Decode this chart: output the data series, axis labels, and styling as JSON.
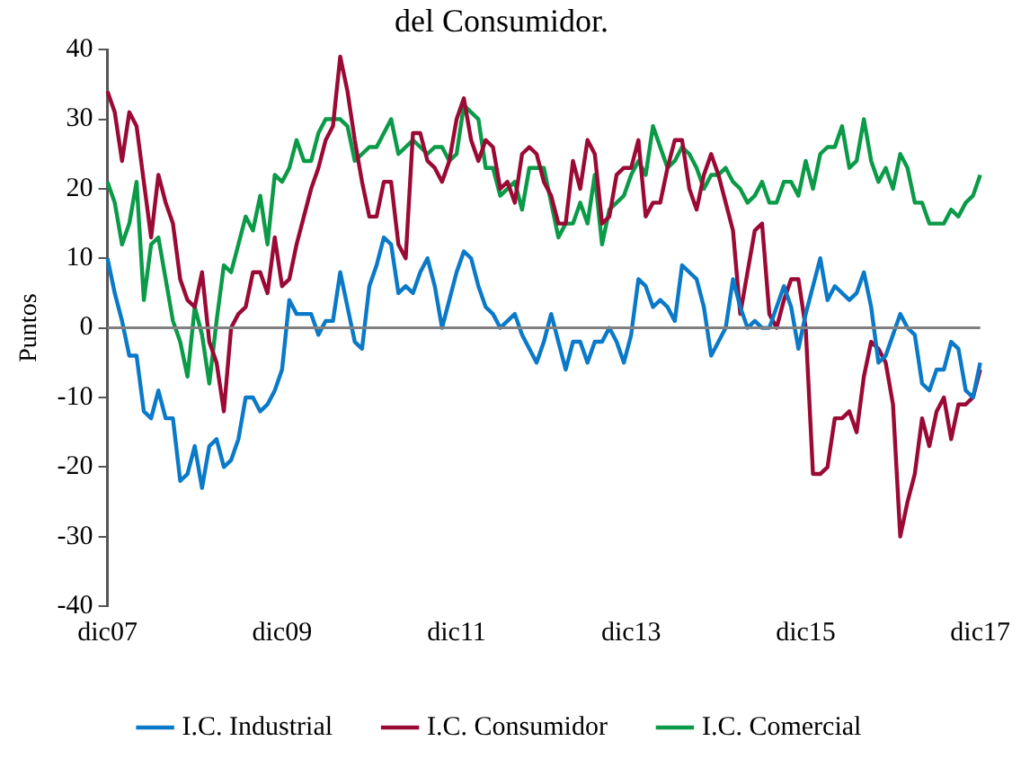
{
  "chart_data": {
    "type": "line",
    "title": "del Consumidor.",
    "ylabel": "Puntos",
    "categories": [
      "dic07",
      null,
      null,
      null,
      null,
      null,
      null,
      null,
      null,
      null,
      null,
      null,
      null,
      null,
      null,
      null,
      null,
      null,
      null,
      null,
      null,
      null,
      null,
      null,
      "dic09",
      null,
      null,
      null,
      null,
      null,
      null,
      null,
      null,
      null,
      null,
      null,
      null,
      null,
      null,
      null,
      null,
      null,
      null,
      null,
      null,
      null,
      null,
      null,
      "dic11",
      null,
      null,
      null,
      null,
      null,
      null,
      null,
      null,
      null,
      null,
      null,
      null,
      null,
      null,
      null,
      null,
      null,
      null,
      null,
      null,
      null,
      null,
      null,
      "dic13",
      null,
      null,
      null,
      null,
      null,
      null,
      null,
      null,
      null,
      null,
      null,
      null,
      null,
      null,
      null,
      null,
      null,
      null,
      null,
      null,
      null,
      null,
      null,
      "dic15",
      null,
      null,
      null,
      null,
      null,
      null,
      null,
      null,
      null,
      null,
      null,
      null,
      null,
      null,
      null,
      null,
      null,
      null,
      null,
      null,
      null,
      null,
      null,
      "dic17"
    ],
    "series": [
      {
        "name": "I.C. Industrial",
        "color": "#0a7ac8",
        "values": [
          10,
          5,
          1,
          -4,
          -4,
          -12,
          -13,
          -9,
          -13,
          -13,
          -22,
          -21,
          -17,
          -23,
          -17,
          -16,
          -20,
          -19,
          -16,
          -10,
          -10,
          -12,
          -11,
          -9,
          -6,
          4,
          2,
          2,
          2,
          -1,
          1,
          1,
          8,
          3,
          -2,
          -3,
          6,
          9,
          13,
          12,
          5,
          6,
          5,
          8,
          10,
          6,
          0,
          4,
          8,
          11,
          10,
          6,
          3,
          2,
          0,
          1,
          2,
          -1,
          -3,
          -5,
          -2,
          2,
          -2,
          -6,
          -2,
          -2,
          -5,
          -2,
          -2,
          0,
          -2,
          -5,
          -1,
          7,
          6,
          3,
          4,
          3,
          1,
          9,
          8,
          7,
          3,
          -4,
          -2,
          0,
          7,
          3,
          0,
          1,
          0,
          0,
          3,
          6,
          3,
          -3,
          2,
          6,
          10,
          4,
          6,
          5,
          4,
          5,
          8,
          3,
          -5,
          -4,
          -1,
          2,
          0,
          -1,
          -8,
          -9,
          -6,
          -6,
          -2,
          -3,
          -9,
          -10,
          -5
        ]
      },
      {
        "name": "I.C. Consumidor",
        "color": "#9b0a35",
        "values": [
          34,
          31,
          24,
          31,
          29,
          21,
          13,
          22,
          18,
          15,
          7,
          4,
          3,
          8,
          -2,
          -5,
          -12,
          0,
          2,
          3,
          8,
          8,
          5,
          13,
          6,
          7,
          12,
          16,
          20,
          23,
          27,
          29,
          39,
          34,
          27,
          21,
          16,
          16,
          21,
          21,
          12,
          10,
          28,
          28,
          24,
          23,
          21,
          24,
          30,
          33,
          27,
          24,
          27,
          26,
          20,
          21,
          18,
          25,
          26,
          25,
          21,
          19,
          15,
          15,
          24,
          20,
          27,
          25,
          15,
          16,
          22,
          23,
          23,
          27,
          16,
          18,
          18,
          23,
          27,
          27,
          20,
          17,
          22,
          25,
          22,
          18,
          14,
          2,
          8,
          14,
          15,
          2,
          0,
          4,
          7,
          7,
          0,
          -21,
          -21,
          -20,
          -13,
          -13,
          -12,
          -15,
          -7,
          -2,
          -3,
          -5,
          -11,
          -30,
          -25,
          -21,
          -13,
          -17,
          -12,
          -10,
          -16,
          -11,
          -11,
          -10,
          -6
        ]
      },
      {
        "name": "I.C. Comercial",
        "color": "#0a9a48",
        "values": [
          21,
          18,
          12,
          15,
          21,
          4,
          12,
          13,
          7,
          1,
          -2,
          -7,
          3,
          -1,
          -8,
          1,
          9,
          8,
          12,
          16,
          14,
          19,
          12,
          22,
          21,
          23,
          27,
          24,
          24,
          28,
          30,
          30,
          30,
          29,
          24,
          25,
          26,
          26,
          28,
          30,
          25,
          26,
          27,
          26,
          25,
          26,
          26,
          24,
          25,
          32,
          31,
          30,
          23,
          23,
          19,
          20,
          21,
          17,
          23,
          23,
          23,
          18,
          13,
          15,
          15,
          18,
          15,
          22,
          12,
          17,
          18,
          19,
          22,
          24,
          22,
          29,
          26,
          23,
          24,
          26,
          25,
          23,
          20,
          22,
          22,
          23,
          21,
          20,
          18,
          19,
          21,
          18,
          18,
          21,
          21,
          19,
          24,
          20,
          25,
          26,
          26,
          29,
          23,
          24,
          30,
          24,
          21,
          23,
          20,
          25,
          23,
          18,
          18,
          15,
          15,
          15,
          17,
          16,
          18,
          19,
          22
        ]
      }
    ],
    "ylim": [
      -40,
      40
    ],
    "yticks": [
      -40,
      -30,
      -20,
      -10,
      0,
      10,
      20,
      30,
      40
    ],
    "ref_lines": [
      {
        "axis": "y",
        "value": 0,
        "color": "#808080"
      }
    ],
    "legend": "bottom",
    "grid": false,
    "marker": "none",
    "line_style": "solid"
  }
}
